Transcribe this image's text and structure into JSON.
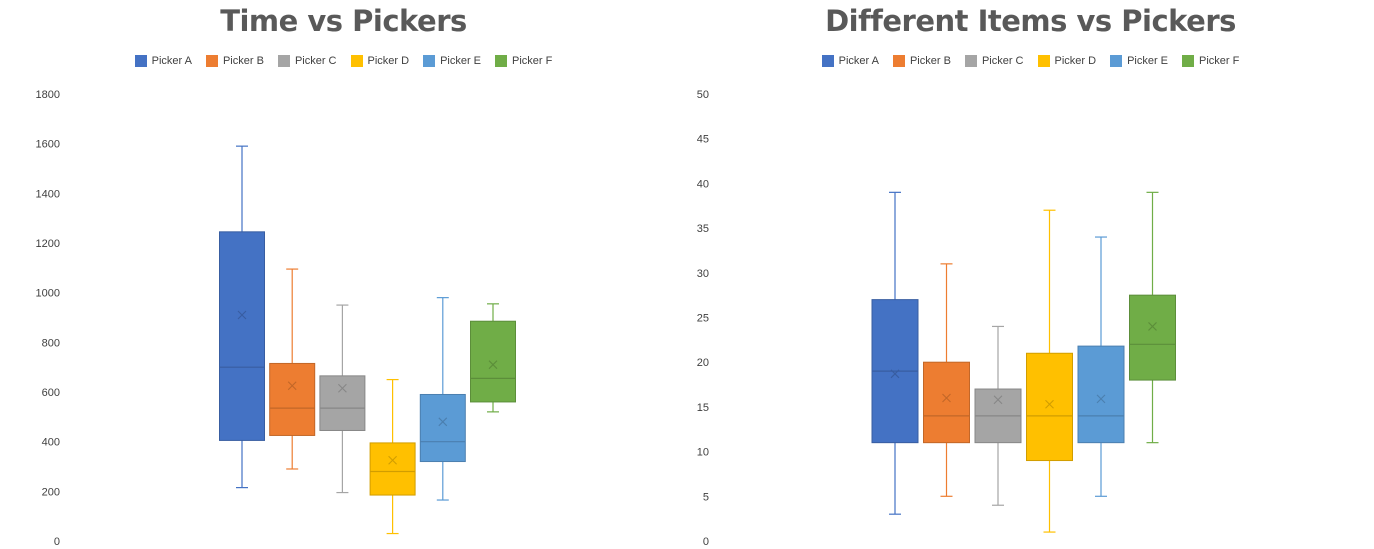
{
  "chart_data": [
    {
      "type": "box",
      "title": "Time vs Pickers",
      "xlabel": "",
      "ylabel": "",
      "ylim": [
        0,
        1800
      ],
      "yticks": [
        0,
        200,
        400,
        600,
        800,
        1000,
        1200,
        1400,
        1600,
        1800
      ],
      "legend_position": "top",
      "series": [
        {
          "name": "Picker A",
          "color": "#4472C4",
          "min": 215,
          "q1": 405,
          "median": 700,
          "q3": 1245,
          "max": 1590,
          "mean": 910
        },
        {
          "name": "Picker B",
          "color": "#ED7D31",
          "min": 290,
          "q1": 425,
          "median": 535,
          "q3": 715,
          "max": 1095,
          "mean": 625
        },
        {
          "name": "Picker C",
          "color": "#A5A5A5",
          "min": 195,
          "q1": 445,
          "median": 535,
          "q3": 665,
          "max": 950,
          "mean": 615
        },
        {
          "name": "Picker D",
          "color": "#FFC000",
          "min": 30,
          "q1": 185,
          "median": 280,
          "q3": 395,
          "max": 650,
          "mean": 325
        },
        {
          "name": "Picker E",
          "color": "#5B9BD5",
          "min": 165,
          "q1": 320,
          "median": 400,
          "q3": 590,
          "max": 980,
          "mean": 480
        },
        {
          "name": "Picker F",
          "color": "#70AD47",
          "min": 520,
          "q1": 560,
          "median": 655,
          "q3": 885,
          "max": 955,
          "mean": 710
        }
      ]
    },
    {
      "type": "box",
      "title": "Different Items vs Pickers",
      "xlabel": "",
      "ylabel": "",
      "ylim": [
        0,
        50
      ],
      "yticks": [
        0,
        5,
        10,
        15,
        20,
        25,
        30,
        35,
        40,
        45,
        50
      ],
      "legend_position": "top",
      "series": [
        {
          "name": "Picker A",
          "color": "#4472C4",
          "min": 3,
          "q1": 11,
          "median": 19,
          "q3": 27,
          "max": 39,
          "mean": 18.7
        },
        {
          "name": "Picker B",
          "color": "#ED7D31",
          "min": 5,
          "q1": 11,
          "median": 14,
          "q3": 20,
          "max": 31,
          "mean": 16
        },
        {
          "name": "Picker C",
          "color": "#A5A5A5",
          "min": 4,
          "q1": 11,
          "median": 14,
          "q3": 17,
          "max": 24,
          "mean": 15.8
        },
        {
          "name": "Picker D",
          "color": "#FFC000",
          "min": 1,
          "q1": 9,
          "median": 14,
          "q3": 21,
          "max": 37,
          "mean": 15.3
        },
        {
          "name": "Picker E",
          "color": "#5B9BD5",
          "min": 5,
          "q1": 11,
          "median": 14,
          "q3": 21.8,
          "max": 34,
          "mean": 15.9
        },
        {
          "name": "Picker F",
          "color": "#70AD47",
          "min": 11,
          "q1": 18,
          "median": 22,
          "q3": 27.5,
          "max": 39,
          "mean": 24
        }
      ]
    }
  ]
}
